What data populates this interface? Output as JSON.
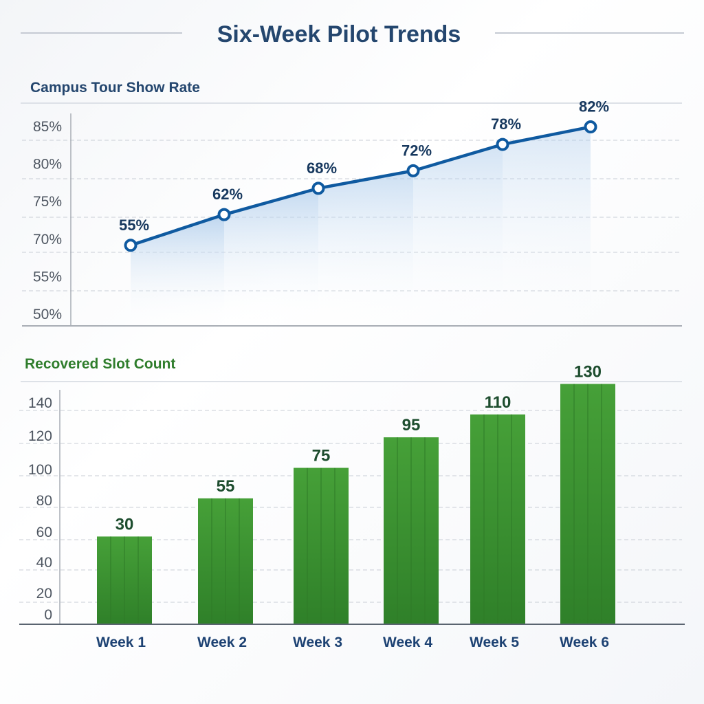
{
  "title": "Six-Week Pilot Trends",
  "colors": {
    "title": "#24466e",
    "line": "#0f5aa0",
    "line_label": "#17385e",
    "bar": "#3f9a33",
    "bar_label": "#1d4d2e",
    "bar_title": "#2f7d2c",
    "grid": "#c9ced6"
  },
  "chart_data": [
    {
      "type": "line",
      "title": "Campus Tour Show Rate",
      "categories": [
        "Week 1",
        "Week 2",
        "Week 3",
        "Week 4",
        "Week 5",
        "Week 6"
      ],
      "values": [
        55,
        62,
        68,
        72,
        78,
        82
      ],
      "data_labels": [
        "55%",
        "62%",
        "68%",
        "72%",
        "78%",
        "82%"
      ],
      "y_tick_labels": [
        "85%",
        "80%",
        "75%",
        "70%",
        "55%",
        "50%"
      ],
      "grid": true,
      "area_fill": true
    },
    {
      "type": "bar",
      "title": "Recovered Slot Count",
      "categories": [
        "Week 1",
        "Week 2",
        "Week 3",
        "Week 4",
        "Week 5",
        "Week 6"
      ],
      "values": [
        30,
        55,
        75,
        95,
        110,
        130
      ],
      "data_labels": [
        "30",
        "55",
        "75",
        "95",
        "110",
        "130"
      ],
      "y_tick_labels": [
        "140",
        "120",
        "100",
        "80",
        "60",
        "40",
        "20",
        "0"
      ],
      "grid": true
    }
  ]
}
